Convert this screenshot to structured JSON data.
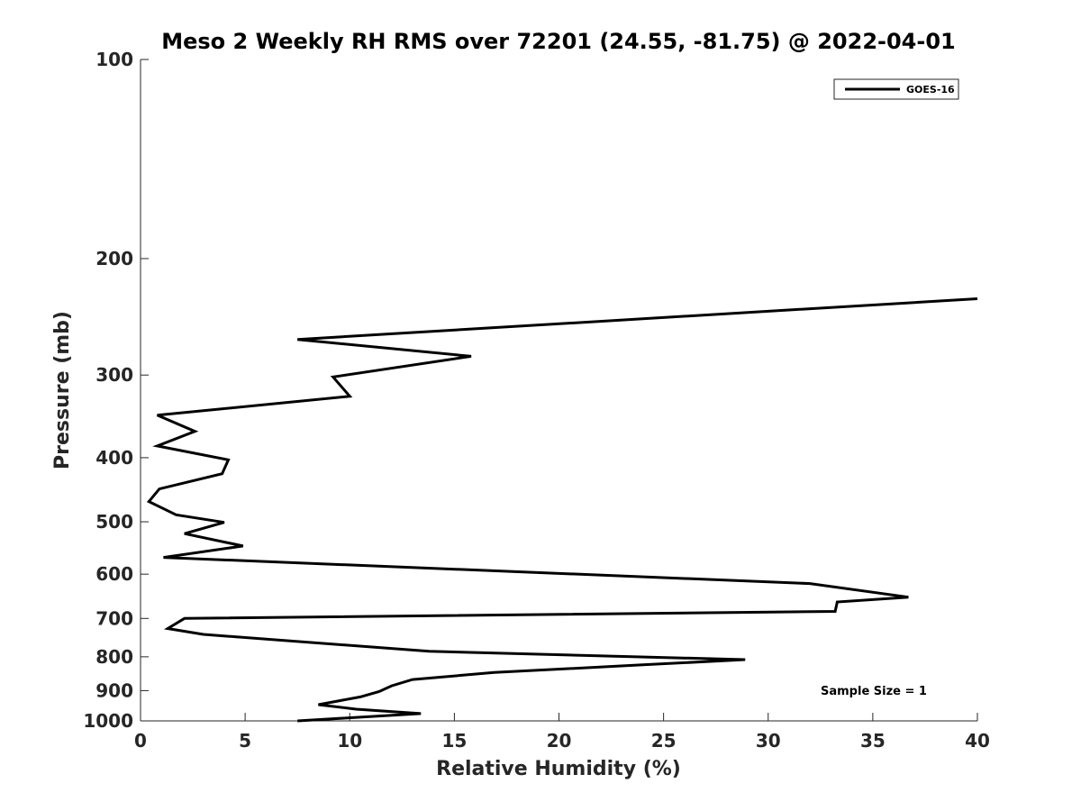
{
  "chart_data": {
    "type": "line",
    "title": "Meso 2 Weekly RH RMS over 72201 (24.55, -81.75) @ 2022-04-01",
    "xlabel": "Relative Humidity (%)",
    "ylabel": "Pressure (mb)",
    "xlim": [
      0,
      40
    ],
    "ylim": [
      100,
      1000
    ],
    "y_scale": "log",
    "y_reversed": true,
    "x_ticks": [
      "0",
      "5",
      "10",
      "15",
      "20",
      "25",
      "30",
      "35",
      "40"
    ],
    "y_ticks": [
      "100",
      "200",
      "300",
      "400",
      "500",
      "600",
      "700",
      "800",
      "900",
      "1000"
    ],
    "grid": false,
    "legend_position": "top-right",
    "annotation": "Sample Size = 1",
    "series": [
      {
        "name": "GOES-16",
        "color": "#000000",
        "points": [
          [
            40.0,
            230
          ],
          [
            7.5,
            265
          ],
          [
            15.8,
            281
          ],
          [
            9.2,
            302
          ],
          [
            10.0,
            323
          ],
          [
            0.8,
            345
          ],
          [
            2.6,
            365
          ],
          [
            0.8,
            384
          ],
          [
            4.2,
            403
          ],
          [
            3.9,
            423
          ],
          [
            0.9,
            446
          ],
          [
            0.4,
            466
          ],
          [
            1.7,
            488
          ],
          [
            4.0,
            501
          ],
          [
            2.1,
            521
          ],
          [
            4.9,
            544
          ],
          [
            1.1,
            566
          ],
          [
            32.0,
            620
          ],
          [
            36.7,
            650
          ],
          [
            33.3,
            661
          ],
          [
            33.2,
            683
          ],
          [
            2.1,
            700
          ],
          [
            1.3,
            725
          ],
          [
            3.0,
            740
          ],
          [
            13.8,
            785
          ],
          [
            28.9,
            808
          ],
          [
            23.9,
            823
          ],
          [
            16.9,
            845
          ],
          [
            13.0,
            866
          ],
          [
            12.0,
            885
          ],
          [
            11.4,
            903
          ],
          [
            10.5,
            920
          ],
          [
            8.5,
            945
          ],
          [
            10.3,
            960
          ],
          [
            13.4,
            975
          ],
          [
            7.5,
            1000
          ]
        ]
      }
    ]
  }
}
